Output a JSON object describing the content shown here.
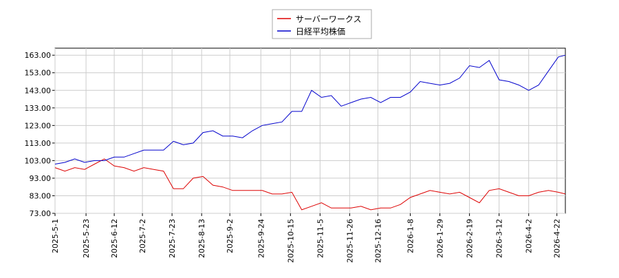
{
  "chart_data": {
    "type": "line",
    "x": [
      "2025-5-1",
      "2025-5-8",
      "2025-5-15",
      "2025-5-22",
      "2025-5-29",
      "2025-6-5",
      "2025-6-12",
      "2025-6-19",
      "2025-6-26",
      "2025-7-3",
      "2025-7-10",
      "2025-7-17",
      "2025-7-24",
      "2025-7-31",
      "2025-8-7",
      "2025-8-14",
      "2025-8-21",
      "2025-8-28",
      "2025-9-4",
      "2025-9-11",
      "2025-9-18",
      "2025-9-25",
      "2025-10-2",
      "2025-10-9",
      "2025-10-16",
      "2025-10-23",
      "2025-10-30",
      "2025-11-6",
      "2025-11-13",
      "2025-11-20",
      "2025-11-27",
      "2025-12-4",
      "2025-12-11",
      "2025-12-18",
      "2025-12-25",
      "2026-1-1",
      "2026-1-8",
      "2026-1-15",
      "2026-1-22",
      "2026-1-29",
      "2026-2-5",
      "2026-2-12",
      "2026-2-19",
      "2026-2-26",
      "2026-3-5",
      "2026-3-12",
      "2026-3-19",
      "2026-3-26",
      "2026-4-2",
      "2026-4-9",
      "2026-4-16",
      "2026-4-23",
      "2026-4-28"
    ],
    "series": [
      {
        "name": "サーバーワークス",
        "color": "#dd0000",
        "values": [
          99,
          97,
          99,
          98,
          101,
          104,
          100,
          99,
          97,
          99,
          98,
          97,
          87,
          87,
          93,
          94,
          89,
          88,
          86,
          86,
          86,
          86,
          84,
          84,
          85,
          75,
          77,
          79,
          76,
          76,
          76,
          77,
          75,
          76,
          76,
          78,
          82,
          84,
          86,
          85,
          84,
          85,
          82,
          79,
          86,
          87,
          85,
          83,
          83,
          85,
          86,
          85,
          84
        ]
      },
      {
        "name": "日経平均株価",
        "color": "#0000cc",
        "values": [
          101,
          102,
          104,
          102,
          103,
          103,
          105,
          105,
          107,
          109,
          109,
          109,
          114,
          112,
          113,
          119,
          120,
          117,
          117,
          116,
          120,
          123,
          124,
          125,
          131,
          131,
          143,
          139,
          140,
          134,
          136,
          138,
          139,
          136,
          139,
          139,
          142,
          148,
          147,
          146,
          147,
          150,
          157,
          156,
          160,
          149,
          148,
          146,
          143,
          146,
          154,
          162,
          163
        ]
      }
    ],
    "xlim": [
      "2025-5-1",
      "2026-4-28"
    ],
    "xticks": [
      "2025-5-1",
      "2025-5-23",
      "2025-6-12",
      "2025-7-2",
      "2025-7-23",
      "2025-8-13",
      "2025-9-2",
      "2025-9-24",
      "2025-10-15",
      "2025-11-5",
      "2025-11-26",
      "2025-12-16",
      "2026-1-8",
      "2026-1-29",
      "2026-2-19",
      "2026-3-12",
      "2026-4-2",
      "2026-4-22"
    ],
    "ylim": [
      73,
      167
    ],
    "yticks": [
      {
        "value": 73,
        "label": "73.00"
      },
      {
        "value": 83,
        "label": "83.00"
      },
      {
        "value": 93,
        "label": "93.00"
      },
      {
        "value": 103,
        "label": "103.00"
      },
      {
        "value": 113,
        "label": "113.00"
      },
      {
        "value": 123,
        "label": "123.00"
      },
      {
        "value": 133,
        "label": "133.00"
      },
      {
        "value": 143,
        "label": "143.00"
      },
      {
        "value": 153,
        "label": "153.00"
      },
      {
        "value": 163,
        "label": "163.00"
      }
    ],
    "grid": true
  }
}
